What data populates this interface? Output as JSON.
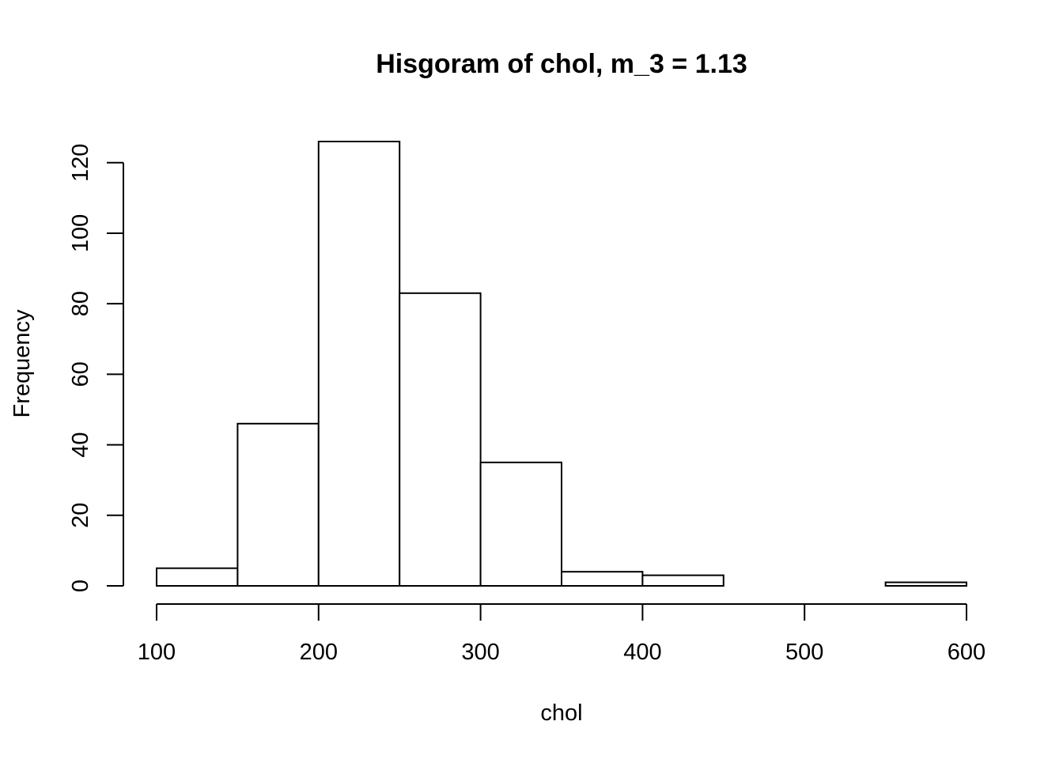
{
  "chart_data": {
    "type": "bar",
    "title": "Hisgoram of chol, m_3 = 1.13",
    "xlabel": "chol",
    "ylabel": "Frequency",
    "xlim": [
      100,
      600
    ],
    "ylim": [
      0,
      126
    ],
    "bin_edges": [
      100,
      150,
      200,
      250,
      300,
      350,
      400,
      450,
      500,
      550,
      600
    ],
    "values": [
      5,
      46,
      126,
      83,
      35,
      4,
      3,
      0,
      0,
      1
    ],
    "x_ticks": [
      100,
      200,
      300,
      400,
      500,
      600
    ],
    "y_ticks": [
      0,
      20,
      40,
      60,
      80,
      100,
      120
    ],
    "grid": false,
    "colors": {
      "bar_fill": "#ffffff",
      "bar_stroke": "#000000"
    }
  }
}
